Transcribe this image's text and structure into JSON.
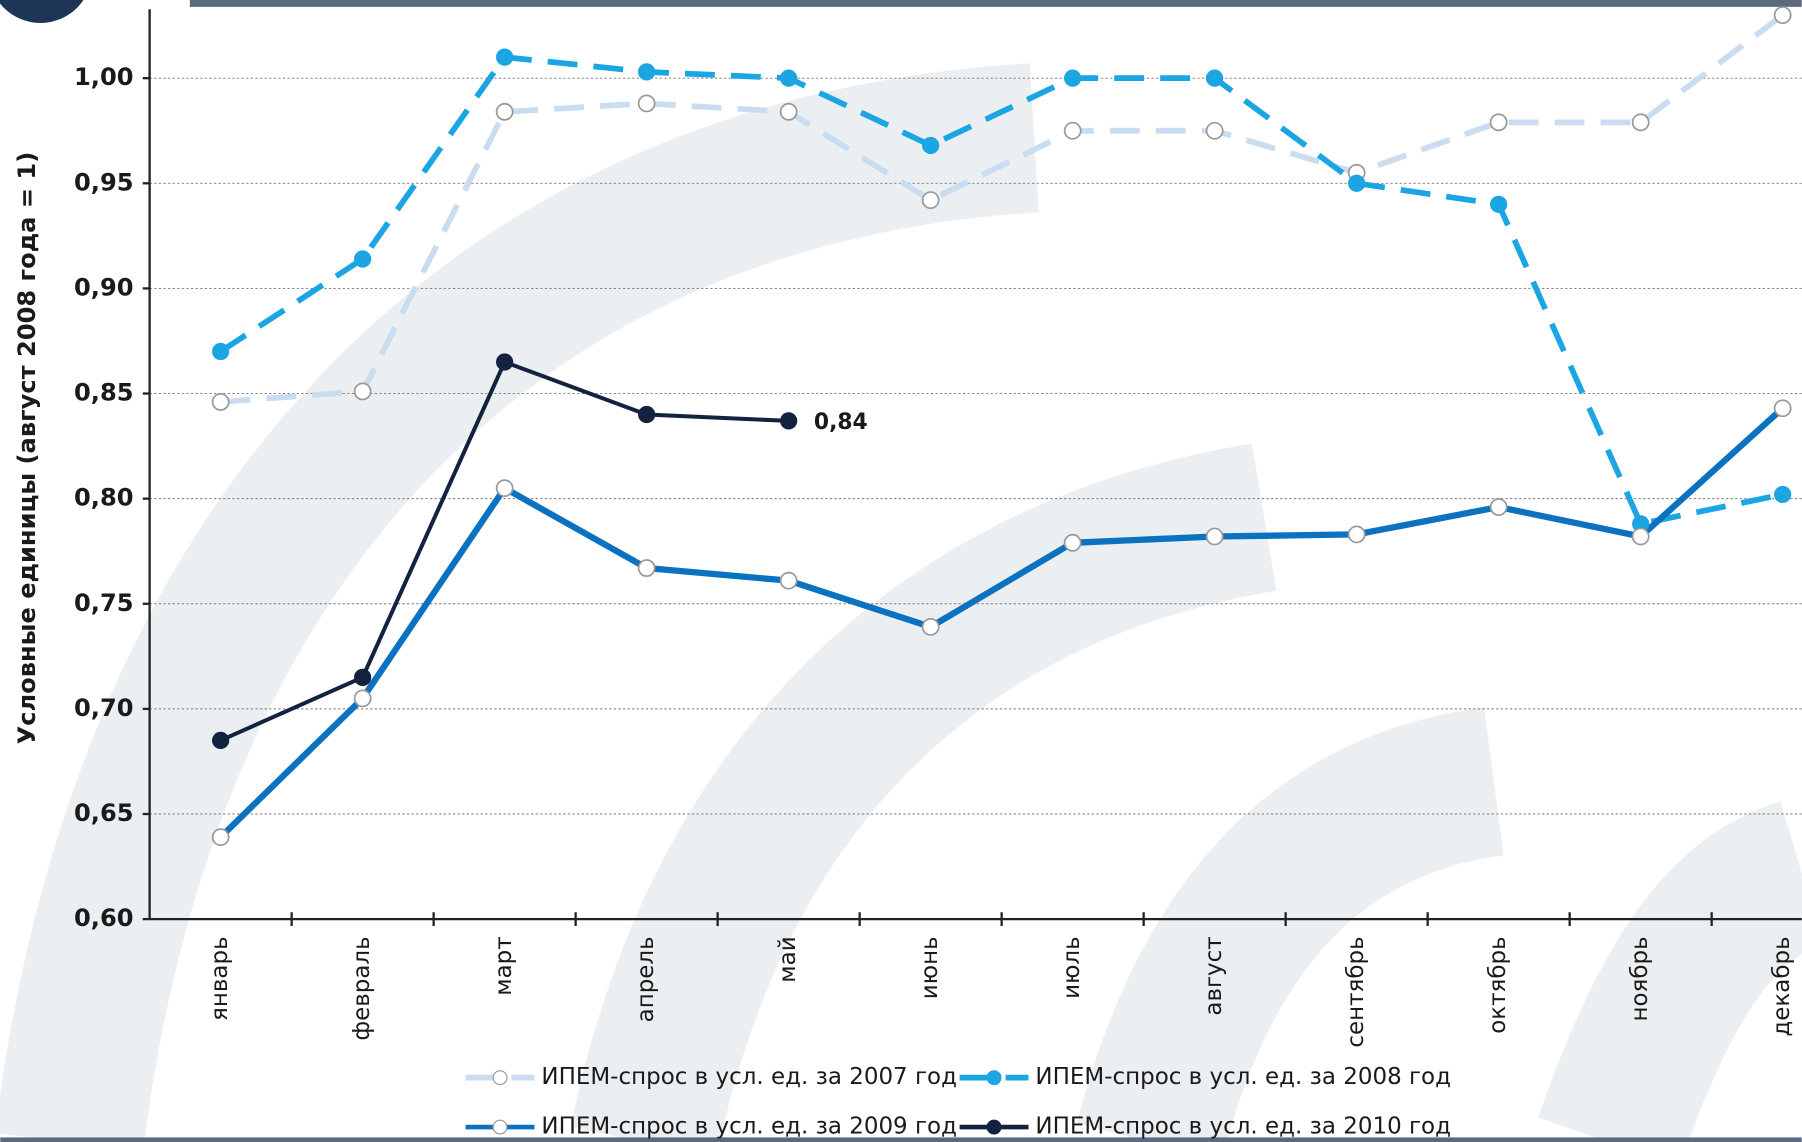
{
  "chart_data": {
    "type": "line",
    "y_label": "Условные единицы (август 2008 года = 1)",
    "categories": [
      "январь",
      "февраль",
      "март",
      "апрель",
      "май",
      "июнь",
      "июль",
      "август",
      "сентябрь",
      "октябрь",
      "ноябрь",
      "декабрь"
    ],
    "ylim": [
      0.6,
      1.035
    ],
    "yticks": [
      {
        "value": 0.6,
        "label": "0,60"
      },
      {
        "value": 0.65,
        "label": "0,65"
      },
      {
        "value": 0.7,
        "label": "0,70"
      },
      {
        "value": 0.75,
        "label": "0,75"
      },
      {
        "value": 0.8,
        "label": "0,80"
      },
      {
        "value": 0.85,
        "label": "0,85"
      },
      {
        "value": 0.9,
        "label": "0,90"
      },
      {
        "value": 0.95,
        "label": "0,95"
      },
      {
        "value": 1.0,
        "label": "1,00"
      }
    ],
    "grid": true,
    "series": [
      {
        "name": "ИПЕМ-спрос в усл. ед. за 2007 год",
        "color": "#c9dcf0",
        "dashed": true,
        "marker": "open",
        "values": [
          0.846,
          0.851,
          0.984,
          0.988,
          0.984,
          0.942,
          0.975,
          0.975,
          0.955,
          0.979,
          0.979,
          1.03
        ]
      },
      {
        "name": "ИПЕМ-спрос в усл. ед. за 2008 год",
        "color": "#1ba5e2",
        "dashed": true,
        "marker": "filled",
        "values": [
          0.87,
          0.914,
          1.01,
          1.003,
          1.0,
          0.968,
          1.0,
          1.0,
          0.95,
          0.94,
          0.788,
          0.802
        ]
      },
      {
        "name": "ИПЕМ-спрос в усл. ед. за 2009 год",
        "color": "#0b72c2",
        "dashed": false,
        "marker": "open",
        "values": [
          0.639,
          0.705,
          0.805,
          0.767,
          0.761,
          0.739,
          0.779,
          0.782,
          0.783,
          0.796,
          0.782,
          0.843
        ]
      },
      {
        "name": "ИПЕМ-спрос в усл. ед. за 2010 год",
        "color": "#13233f",
        "dashed": false,
        "marker": "filled",
        "values": [
          0.685,
          0.715,
          0.865,
          0.84,
          0.837,
          null,
          null,
          null,
          null,
          null,
          null,
          null
        ],
        "value_labels": [
          null,
          null,
          null,
          null,
          "0,84",
          null,
          null,
          null,
          null,
          null,
          null,
          null
        ]
      }
    ]
  }
}
